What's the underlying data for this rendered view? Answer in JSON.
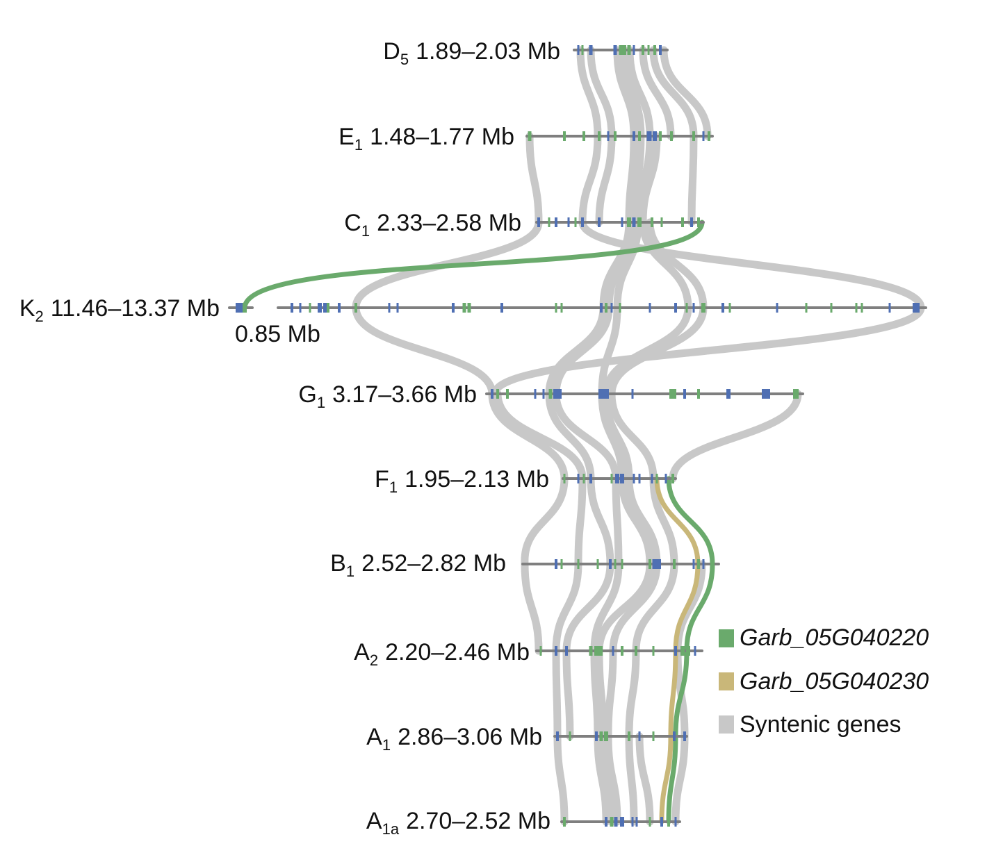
{
  "colors": {
    "background": "#ffffff",
    "chromosome_line": "#7f7f7f",
    "gene_green": "#6aaa6c",
    "gene_blue": "#4f6fb3",
    "syntenic_link": "#c8c8c8",
    "link_garb_05G040220": "#6aaa6c",
    "link_garb_05G040230": "#c9b779"
  },
  "tracks": [
    {
      "id": "D5",
      "genome": "D",
      "subscript": "5",
      "range": "1.89–2.03 Mb"
    },
    {
      "id": "E1",
      "genome": "E",
      "subscript": "1",
      "range": "1.48–1.77 Mb"
    },
    {
      "id": "C1",
      "genome": "C",
      "subscript": "1",
      "range": "2.33–2.58 Mb"
    },
    {
      "id": "K2",
      "genome": "K",
      "subscript": "2",
      "range": "11.46–13.37 Mb",
      "break_label": "0.85 Mb"
    },
    {
      "id": "G1",
      "genome": "G",
      "subscript": "1",
      "range": "3.17–3.66 Mb"
    },
    {
      "id": "F1",
      "genome": "F",
      "subscript": "1",
      "range": "1.95–2.13 Mb"
    },
    {
      "id": "B1",
      "genome": "B",
      "subscript": "1",
      "range": "2.52–2.82 Mb"
    },
    {
      "id": "A2",
      "genome": "A",
      "subscript": "2",
      "range": "2.20–2.46 Mb"
    },
    {
      "id": "A1",
      "genome": "A",
      "subscript": "1",
      "range": "2.86–3.06 Mb"
    },
    {
      "id": "A1a",
      "genome": "A",
      "subscript": "1a",
      "range": "2.70–2.52 Mb"
    }
  ],
  "legend": [
    {
      "label": "Garb_05G040220",
      "color": "#6aaa6c",
      "italic": true
    },
    {
      "label": "Garb_05G040230",
      "color": "#c9b779",
      "italic": true
    },
    {
      "label": "Syntenic genes",
      "color": "#c8c8c8",
      "italic": false
    }
  ]
}
